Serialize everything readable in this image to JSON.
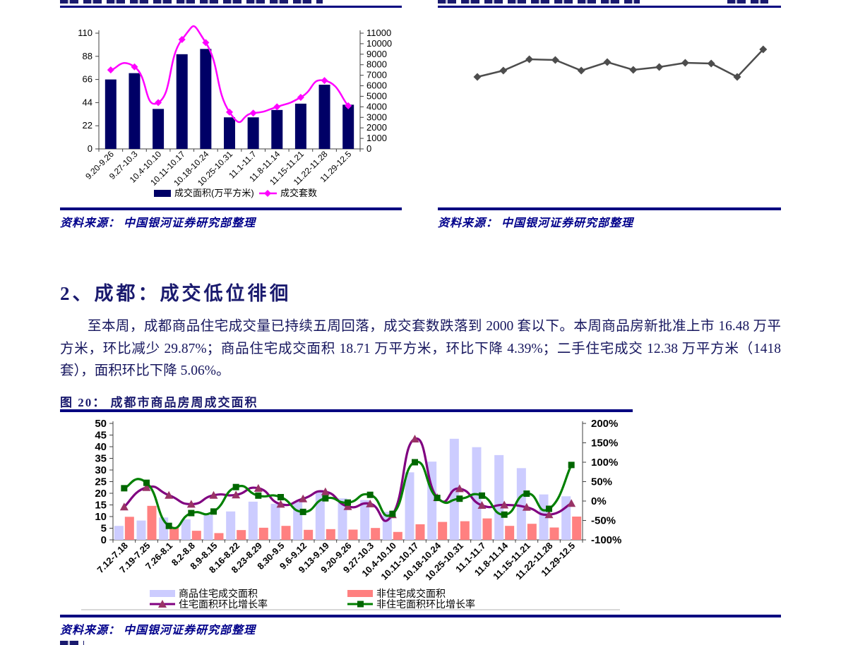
{
  "section": {
    "heading": "2、成都：成交低位徘徊",
    "paragraph_lines": [
      "至本周，成都商品住宅成交量已持续五周回落，成交套数跌落到 2000 套以下。本周商品房新批准上市 16.48 万平",
      "方米，环比减少 29.87%；商品住宅成交面积 18.71 万平方米，环比下降 4.39%；二手住宅成交 12.38 万平方米（1418",
      "套），面积环比下降 5.06%。"
    ]
  },
  "figures": {
    "top_left": {
      "source": "资料来源： 中国银河证券研究部整理"
    },
    "top_right": {
      "source": "资料来源： 中国银河证券研究部整理"
    },
    "figure_20": {
      "caption": "图 20：  成都市商品房周成交面积",
      "source": "资料来源： 中国银河证券研究部整理"
    }
  },
  "colors": {
    "rule_navy": "#000080",
    "ink_navy": "#1a1a6e",
    "source_navy": "#00008b",
    "bar_navy": "#000066",
    "line_magenta": "#ff00ff",
    "line_gray": "#4d4d4d",
    "bar_lavender": "#ccccff",
    "bar_salmon": "#ff8080",
    "line_purple": "#800080",
    "line_green": "#008000"
  },
  "chart_data": [
    {
      "id": "top-left",
      "type": "bar+line",
      "categories": [
        "9.20-9.26",
        "9.27-10.3",
        "10.4-10.10",
        "10.11-10.17",
        "10.18-10.24",
        "10.25-10.31",
        "11.1-11.7",
        "11.8-11.14",
        "11.15-11.21",
        "11.22-11.28",
        "11.29-12.5"
      ],
      "bar_series": {
        "name": "成交面积(万平方米)",
        "color": "#000066",
        "axis": "left",
        "values": [
          66,
          72,
          38,
          90,
          95,
          30,
          30,
          37,
          43,
          61,
          42
        ]
      },
      "line_series": {
        "name": "成交套数",
        "color": "#ff00ff",
        "marker": "diamond",
        "axis": "right",
        "values": [
          7500,
          7800,
          4400,
          10400,
          10100,
          3500,
          3400,
          4000,
          4900,
          6500,
          4100
        ]
      },
      "left_axis": {
        "min": 0,
        "max": 110,
        "ticks": [
          0,
          22,
          44,
          66,
          88,
          110
        ]
      },
      "right_axis": {
        "min": 0,
        "max": 11000,
        "step": 1000
      },
      "legend_position": "bottom",
      "grid": false
    },
    {
      "id": "top-right",
      "type": "line",
      "series": {
        "name": "",
        "color": "#4d4d4d",
        "marker": "diamond",
        "values_relative": [
          21,
          30,
          46,
          45,
          30,
          42,
          31,
          35,
          41,
          40,
          21,
          60
        ]
      },
      "axes_visible": false
    },
    {
      "id": "figure-20",
      "type": "bar+line",
      "title": "成都市商品房周成交面积",
      "categories": [
        "7.12-7.18",
        "7.19-7.25",
        "7.26-8.1",
        "8.2-8.8",
        "8.9-8.15",
        "8.16-8.22",
        "8.23-8.29",
        "8.30-9.5",
        "9.6-9.12",
        "9.13-9.19",
        "9.20-9.26",
        "9.27-10.3",
        "10.4-10.10",
        "10.11-10.17",
        "10.18-10.24",
        "10.25-10.31",
        "11.1-11.7",
        "11.8-11.14",
        "11.15-11.21",
        "11.22-11.28",
        "11.29-12.5"
      ],
      "bar_series": [
        {
          "name": "商品住宅成交面积",
          "color": "#ccccff",
          "axis": "left",
          "values": [
            6,
            8.3,
            9.6,
            8.8,
            10.7,
            12.2,
            16.4,
            15.5,
            16.5,
            20.5,
            17.8,
            17.1,
            12,
            29,
            33.6,
            43.4,
            39.8,
            36.4,
            30.8,
            19.5,
            18.7
          ]
        },
        {
          "name": "非住宅成交面积",
          "color": "#ff8080",
          "axis": "left",
          "values": [
            9.9,
            14.6,
            5.5,
            3.9,
            2.9,
            4.2,
            5.2,
            6,
            4.3,
            4.6,
            4.4,
            5.1,
            3.4,
            6.7,
            7.7,
            8,
            9.2,
            6,
            6.9,
            5.3,
            10
          ]
        }
      ],
      "line_series": [
        {
          "name": "住宅面积环比增长率",
          "color": "#800080",
          "marker": "triangle",
          "marker_color": "#993366",
          "axis": "right",
          "values_pct": [
            -15,
            35,
            15,
            -8,
            15,
            16,
            33,
            -8,
            6,
            24,
            -14,
            -7,
            -35,
            160,
            9,
            32,
            -11,
            -10,
            -16,
            -35,
            -6
          ]
        },
        {
          "name": "非住宅面积环比增长率",
          "color": "#008000",
          "marker": "square",
          "marker_color": "#006600",
          "axis": "right",
          "values_pct": [
            33,
            47,
            -64,
            -31,
            -27,
            36,
            14,
            10,
            -28,
            7,
            -4,
            16,
            -33,
            100,
            8,
            6,
            14,
            -35,
            19,
            -20,
            93
          ]
        }
      ],
      "left_axis": {
        "min": 0,
        "max": 50,
        "step": 5
      },
      "right_axis": {
        "min": -100,
        "max": 200,
        "step": 50,
        "format": "percent",
        "labels": [
          "200%",
          "150%",
          "100%",
          "50%",
          "0%",
          "-50%",
          "-100%"
        ]
      },
      "legend_position": "bottom",
      "grid": false
    }
  ]
}
